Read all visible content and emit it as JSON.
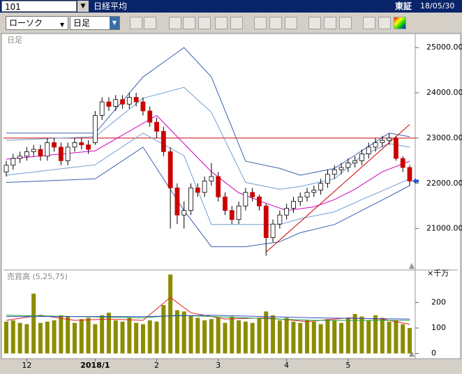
{
  "header": {
    "code": "101",
    "name": "日経平均",
    "market": "東証",
    "date": "18/05/30"
  },
  "toolbar": {
    "chart_type": "ローソク",
    "period": "日足"
  },
  "chart_data": [
    {
      "type": "candlestick",
      "title": "日足",
      "categories": [
        null,
        null,
        null,
        "12",
        null,
        null,
        null,
        null,
        null,
        null,
        null,
        null,
        null,
        "2018/1",
        null,
        null,
        null,
        null,
        null,
        null,
        null,
        null,
        "2",
        null,
        null,
        null,
        null,
        null,
        null,
        null,
        null,
        "3",
        null,
        null,
        null,
        null,
        null,
        null,
        null,
        null,
        null,
        "4",
        null,
        null,
        null,
        null,
        null,
        null,
        null,
        null,
        "5",
        null,
        null,
        null,
        null,
        null,
        null,
        null,
        null,
        null
      ],
      "open": [
        22250,
        22400,
        22550,
        22600,
        22700,
        22750,
        22600,
        22900,
        22800,
        22500,
        22800,
        22900,
        22850,
        22900,
        23500,
        23800,
        23700,
        23850,
        23750,
        23900,
        23800,
        23600,
        23350,
        23150,
        22700,
        21900,
        21300,
        21400,
        21900,
        21800,
        22050,
        22150,
        21700,
        21400,
        21200,
        21500,
        21800,
        21700,
        21500,
        20800,
        21100,
        21300,
        21450,
        21600,
        21700,
        21800,
        21850,
        22000,
        22200,
        22300,
        22350,
        22450,
        22500,
        22650,
        22800,
        22900,
        22950,
        23000,
        22550,
        22350
      ],
      "high": [
        22500,
        22650,
        22700,
        22800,
        22850,
        22850,
        23000,
        23000,
        22900,
        22900,
        23000,
        23000,
        22950,
        23600,
        23900,
        23900,
        23950,
        23950,
        24000,
        24000,
        23900,
        23700,
        23450,
        23250,
        22800,
        22000,
        21600,
        22000,
        22000,
        22150,
        22450,
        22250,
        21800,
        21500,
        21600,
        21900,
        21900,
        21750,
        21550,
        21200,
        21400,
        21550,
        21700,
        21800,
        21900,
        21950,
        22100,
        22300,
        22400,
        22450,
        22550,
        22600,
        22750,
        22900,
        23000,
        23050,
        23100,
        23050,
        22600,
        22400
      ],
      "low": [
        22150,
        22300,
        22450,
        22500,
        22600,
        22500,
        22500,
        22700,
        22400,
        22400,
        22700,
        22750,
        22650,
        22850,
        23400,
        23600,
        23600,
        23650,
        23650,
        23700,
        23500,
        23250,
        23000,
        22600,
        21000,
        21100,
        21000,
        21300,
        21700,
        21700,
        21950,
        21600,
        21300,
        21100,
        21100,
        21400,
        21600,
        21400,
        20400,
        20700,
        21000,
        21200,
        21350,
        21500,
        21600,
        21700,
        21750,
        21900,
        22100,
        22200,
        22250,
        22350,
        22400,
        22550,
        22700,
        22800,
        22850,
        22500,
        22250,
        21950
      ],
      "close": [
        22400,
        22550,
        22600,
        22700,
        22750,
        22600,
        22900,
        22800,
        22500,
        22800,
        22900,
        22850,
        22750,
        23500,
        23800,
        23700,
        23850,
        23750,
        23900,
        23800,
        23600,
        23350,
        23150,
        22700,
        21900,
        21300,
        21400,
        21900,
        21800,
        22050,
        22150,
        21700,
        21400,
        21200,
        21500,
        21800,
        21700,
        21500,
        20800,
        21100,
        21300,
        21450,
        21600,
        21700,
        21800,
        21850,
        22000,
        22200,
        22300,
        22350,
        22450,
        22500,
        22650,
        22800,
        22900,
        22950,
        23000,
        22550,
        22350,
        22050
      ],
      "up_color": "#ffffff",
      "down_color": "#cc0000",
      "ylim": [
        20100,
        25280
      ],
      "yticks": [
        {
          "value": 21000,
          "label": "21000.00"
        },
        {
          "value": 22000,
          "label": "22000.00"
        },
        {
          "value": 23000,
          "label": "23000.00"
        },
        {
          "value": 24000,
          "label": "24000.00"
        },
        {
          "value": 25000,
          "label": "25000.00"
        }
      ],
      "series": [
        {
          "color": "#d000c0",
          "x": [
            0,
            13,
            22,
            30,
            34,
            38,
            41,
            45,
            48,
            51,
            55,
            59
          ],
          "values": [
            22535,
            22720,
            23500,
            22255,
            21790,
            21560,
            21400,
            21480,
            21640,
            21870,
            22255,
            22490
          ]
        },
        {
          "color": "#3a5fb0",
          "x": [
            0,
            13,
            20,
            26,
            30,
            35,
            40,
            43,
            48,
            52,
            56,
            59
          ],
          "values": [
            23110,
            23110,
            24350,
            25000,
            24350,
            22490,
            22330,
            22180,
            22330,
            22720,
            23110,
            23030
          ]
        },
        {
          "color": "#6f9fd0",
          "x": [
            0,
            13,
            20,
            26,
            30,
            35,
            40,
            43,
            48,
            52,
            56,
            59
          ],
          "values": [
            22950,
            23030,
            23880,
            24120,
            23570,
            22020,
            21870,
            21930,
            22100,
            22610,
            22880,
            22800
          ]
        },
        {
          "color": "#6f9fd0",
          "x": [
            0,
            13,
            20,
            26,
            30,
            35,
            40,
            43,
            48,
            52,
            56,
            59
          ],
          "values": [
            22180,
            22410,
            23110,
            22610,
            21090,
            21090,
            21090,
            21220,
            21370,
            21640,
            21900,
            22100
          ]
        },
        {
          "color": "#3a5fb0",
          "x": [
            0,
            13,
            20,
            26,
            30,
            35,
            40,
            43,
            48,
            52,
            56,
            59
          ],
          "values": [
            22020,
            22100,
            22800,
            21400,
            20600,
            20600,
            20710,
            20910,
            21090,
            21400,
            21710,
            21950
          ]
        }
      ],
      "hline": {
        "value": 23000,
        "color": "#cc0000"
      },
      "trendline": {
        "x": [
          38,
          59
        ],
        "values": [
          20480,
          23300
        ],
        "color": "#cc0000"
      }
    },
    {
      "type": "bar",
      "title": "売買高 (5,25,75)",
      "unit": "×千万",
      "color": "#8c8c00",
      "values": [
        125,
        130,
        120,
        115,
        235,
        120,
        125,
        130,
        150,
        145,
        120,
        135,
        140,
        115,
        150,
        160,
        130,
        125,
        140,
        120,
        115,
        130,
        125,
        190,
        310,
        170,
        165,
        150,
        140,
        130,
        135,
        140,
        120,
        145,
        130,
        125,
        120,
        140,
        165,
        150,
        130,
        140,
        125,
        120,
        130,
        125,
        115,
        135,
        130,
        120,
        140,
        155,
        145,
        130,
        150,
        140,
        125,
        130,
        115,
        100
      ],
      "ylim": [
        -15,
        325
      ],
      "yticks": [
        0,
        100,
        200
      ],
      "series": [
        {
          "color": "#e02020",
          "x": [
            0,
            5,
            10,
            15,
            20,
            24,
            27,
            32,
            38,
            44,
            50,
            55,
            59
          ],
          "values": [
            130,
            150,
            130,
            135,
            130,
            220,
            160,
            135,
            140,
            125,
            140,
            135,
            115
          ]
        },
        {
          "color": "#20a040",
          "x": [
            0,
            20,
            25,
            35,
            45,
            59
          ],
          "values": [
            150,
            140,
            150,
            140,
            130,
            130
          ]
        },
        {
          "color": "#3050c0",
          "x": [
            0,
            20,
            30,
            45,
            59
          ],
          "values": [
            145,
            145,
            150,
            140,
            135
          ]
        }
      ]
    }
  ]
}
